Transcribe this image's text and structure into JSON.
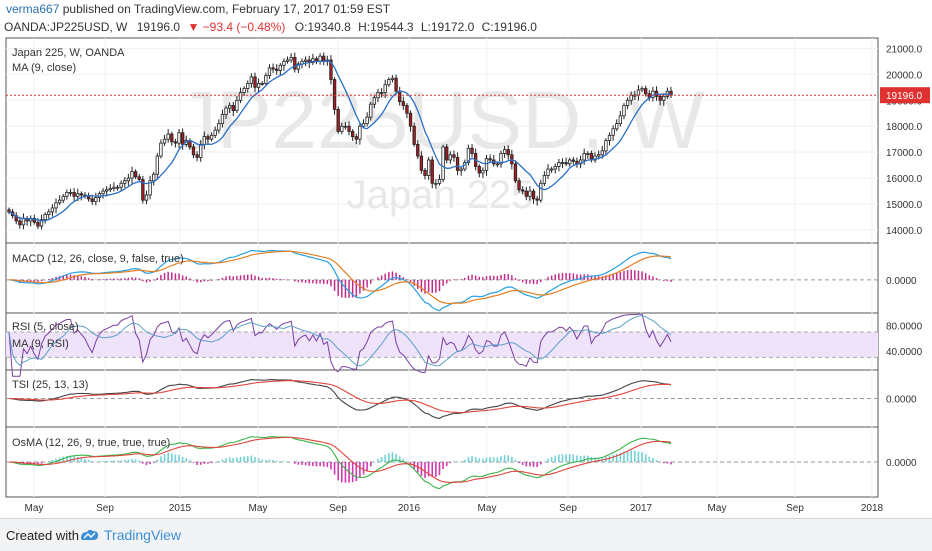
{
  "header": {
    "author": "verma667",
    "published": "published on TradingView.com, February 17, 2017 01:59 EST"
  },
  "symbol": {
    "name": "OANDA:JP225USD, W",
    "price": "19196.0",
    "change": "▼ −93.4 (−0.48%)",
    "open": "O:19340.8",
    "high": "H:19544.3",
    "low": "L:19172.0",
    "close": "C:19196.0"
  },
  "footer": {
    "created_with": "Created with",
    "brand": "TradingView"
  },
  "colors": {
    "up": "#ffffff",
    "down": "#a61d24",
    "ma_line": "#2a6fc8",
    "macd_line": "#2aa0e0",
    "signal_line": "#e67e22",
    "hist": "#c22b8a",
    "rsi_line": "#7b3fa0",
    "rsi_band": "#efe3fb",
    "tsi_main": "#444444",
    "tsi_signal": "#e0453a",
    "osma_green": "#3cb44b",
    "osma_red": "#e0453a",
    "osma_pos": "#6fd0d8",
    "osma_neg": "#d238b4",
    "grid": "#eef0f3",
    "price_line": "#e03131",
    "watermark": "#e8e8e8"
  },
  "chart_data": [
    {
      "type": "candlestick",
      "title": "Japan 225, W, OANDA",
      "indicator": "MA (9, close)",
      "watermark_symbol": "JP225USD, W",
      "watermark_name": "Japan 225",
      "y_ticks": [
        "21000.0",
        "20000.0",
        "19000.0",
        "18000.0",
        "17000.0",
        "16000.0",
        "15000.0",
        "14000.0"
      ],
      "ylim": [
        13500,
        21400
      ],
      "last_price_label": "19196.0",
      "last_price": 19196,
      "x_labels": [
        "May",
        "Sep",
        "2015",
        "May",
        "Sep",
        "2016",
        "May",
        "Sep",
        "2017",
        "May",
        "Sep",
        "2018"
      ],
      "close": [
        14700,
        14550,
        14350,
        14200,
        14450,
        14350,
        14450,
        14300,
        14150,
        14400,
        14600,
        14700,
        14850,
        15050,
        15150,
        15300,
        15450,
        15450,
        15300,
        15400,
        15350,
        15300,
        15200,
        15100,
        15250,
        15400,
        15500,
        15550,
        15600,
        15650,
        15650,
        15800,
        15900,
        16000,
        16250,
        16050,
        15950,
        15150,
        15350,
        15900,
        16150,
        16850,
        17350,
        17500,
        17700,
        17400,
        17350,
        17750,
        17300,
        17450,
        17200,
        16900,
        16800,
        17300,
        17600,
        17500,
        17650,
        17850,
        18100,
        18450,
        18700,
        18800,
        18600,
        19000,
        19300,
        19450,
        19650,
        19900,
        19500,
        19650,
        19650,
        19950,
        20250,
        20200,
        20150,
        20350,
        20500,
        20550,
        20650,
        20200,
        20400,
        20500,
        20550,
        20450,
        20600,
        20500,
        20700,
        20500,
        20550,
        19800,
        18650,
        17800,
        18000,
        18000,
        17800,
        17600,
        17500,
        18000,
        18100,
        18350,
        18850,
        19100,
        19300,
        19300,
        19600,
        19800,
        19850,
        19350,
        18950,
        18800,
        18500,
        18000,
        17300,
        16850,
        16300,
        16100,
        16700,
        15800,
        15800,
        15950,
        17200,
        16700,
        16900,
        16800,
        16300,
        16350,
        16600,
        17150,
        16950,
        16450,
        16200,
        16300,
        16750,
        16700,
        16550,
        16550,
        16950,
        17100,
        16900,
        16550,
        15900,
        15550,
        15500,
        15300,
        15500,
        15200,
        15150,
        15800,
        16100,
        16350,
        16350,
        16450,
        16600,
        16600,
        16550,
        16700,
        16650,
        16550,
        16700,
        16950,
        16950,
        16700,
        16850,
        16900,
        17050,
        17450,
        17650,
        17900,
        18100,
        18400,
        18800,
        19000,
        19200,
        19200,
        19400,
        19450,
        19250,
        19100,
        19350,
        19150,
        19000,
        19150,
        19350,
        19196
      ],
      "ma9_period": 9,
      "macd_label": "MACD (12, 26, close, 9, false, true)",
      "macd_ticks": [
        "0.0000"
      ],
      "rsi_label": "RSI (5, close)",
      "rsi_ma_label": "MA (9, RSI)",
      "rsi_ticks": [
        "80.0000",
        "40.0000"
      ],
      "rsi_band": [
        30,
        70
      ],
      "tsi_label": "TSI (25, 13, 13)",
      "tsi_ticks": [
        "0.0000"
      ],
      "osma_label": "OsMA (12, 26, 9, true, true, true)",
      "osma_ticks": [
        "0.0000"
      ]
    }
  ]
}
